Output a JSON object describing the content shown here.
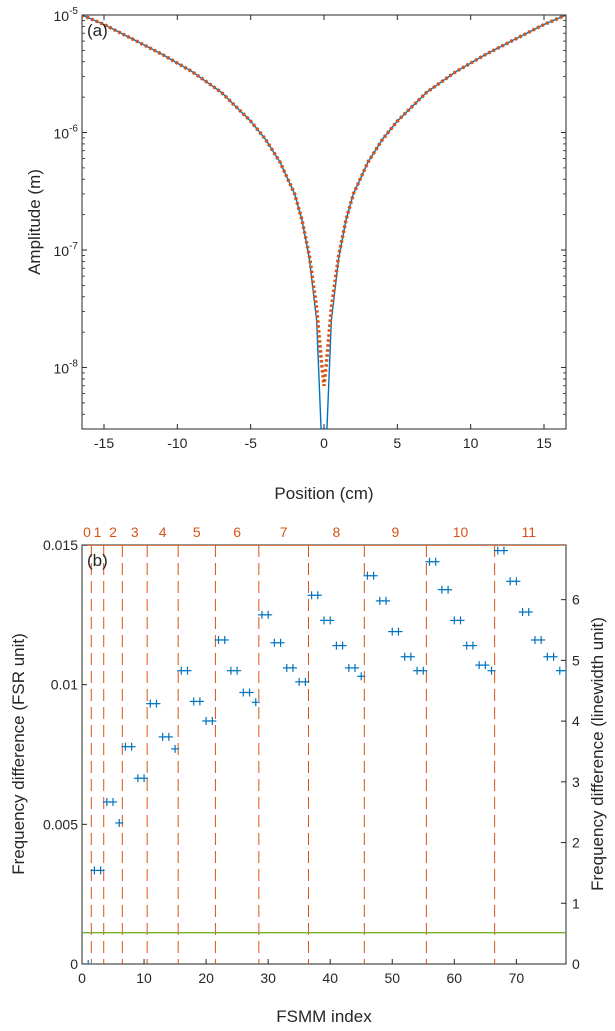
{
  "chart_data": [
    {
      "type": "line",
      "panel_label": "(a)",
      "xlabel": "Position (cm)",
      "ylabel": "Amplitude (m)",
      "xlim": [
        -16.5,
        16.5
      ],
      "ylim": [
        3e-09,
        1e-05
      ],
      "yscale": "log",
      "x_ticks": [
        -15,
        -10,
        -5,
        0,
        5,
        10,
        15
      ],
      "x_tick_labels": [
        "-15",
        "-10",
        "-5",
        "0",
        "5",
        "10",
        "15"
      ],
      "y_ticks": [
        1e-08,
        1e-07,
        1e-06,
        1e-05
      ],
      "y_tick_bases": [
        "10",
        "10",
        "10",
        "10"
      ],
      "y_tick_exponents": [
        "-8",
        "-7",
        "-6",
        "-5"
      ],
      "grid": false,
      "colors": {
        "solid": "#0072bd",
        "dotted": "#d95319"
      },
      "series": [
        {
          "style": "solid",
          "x": [
            -16.5,
            -15,
            -13,
            -11,
            -9,
            -7,
            -5,
            -4,
            -3,
            -2,
            -1.5,
            -1,
            -0.5,
            -0.2,
            0.2,
            0.5,
            1,
            1.5,
            2,
            3,
            4,
            5,
            7,
            9,
            11,
            13,
            15,
            16.5
          ],
          "y": [
            1e-05,
            8.3e-06,
            6.2e-06,
            4.6e-06,
            3.3e-06,
            2.2e-06,
            1.25e-06,
            8.8e-07,
            5.6e-07,
            3e-07,
            1.8e-07,
            8.5e-08,
            2.5e-08,
            3e-09,
            3e-09,
            2.5e-08,
            8.5e-08,
            1.8e-07,
            3e-07,
            5.6e-07,
            8.8e-07,
            1.25e-06,
            2.2e-06,
            3.3e-06,
            4.6e-06,
            6.2e-06,
            8.3e-06,
            1e-05
          ]
        },
        {
          "style": "dotted",
          "x": [
            -16.5,
            -15,
            -13,
            -11,
            -9,
            -7,
            -5,
            -4,
            -3,
            -2,
            -1.5,
            -1,
            -0.5,
            -0.2,
            0,
            0.2,
            0.5,
            1,
            1.5,
            2,
            3,
            4,
            5,
            7,
            9,
            11,
            13,
            15,
            16.5
          ],
          "y": [
            1e-05,
            8.3e-06,
            6.2e-06,
            4.6e-06,
            3.3e-06,
            2.2e-06,
            1.25e-06,
            8.8e-07,
            5.6e-07,
            3e-07,
            1.8e-07,
            9e-08,
            3.2e-08,
            1.2e-08,
            7e-09,
            1.2e-08,
            3.2e-08,
            9e-08,
            1.8e-07,
            3e-07,
            5.6e-07,
            8.8e-07,
            1.25e-06,
            2.2e-06,
            3.3e-06,
            4.6e-06,
            6.2e-06,
            8.3e-06,
            1e-05
          ]
        }
      ]
    },
    {
      "type": "scatter",
      "panel_label": "(b)",
      "xlabel": "FSMM index",
      "ylabel": "Frequency difference (FSR unit)",
      "y2label": "Frequency difference (linewidth unit)",
      "xlim": [
        0,
        78
      ],
      "ylim": [
        0,
        0.015
      ],
      "y2lim": [
        0,
        6.9
      ],
      "x_ticks": [
        0,
        10,
        20,
        30,
        40,
        50,
        60,
        70
      ],
      "x_tick_labels": [
        "0",
        "10",
        "20",
        "30",
        "40",
        "50",
        "60",
        "70"
      ],
      "y_ticks": [
        0,
        0.005,
        0.01,
        0.015
      ],
      "y_tick_labels": [
        "0",
        "0.005",
        "0.01",
        "0.015"
      ],
      "y2_ticks": [
        0,
        1,
        2,
        3,
        4,
        5,
        6
      ],
      "y2_tick_labels": [
        "0",
        "1",
        "2",
        "3",
        "4",
        "5",
        "6"
      ],
      "grid": false,
      "colors": {
        "markers": "#0072bd",
        "dividers": "#d95319",
        "threshold": "#77ac30",
        "top_labels": "#d95319"
      },
      "threshold_value": 0.00112,
      "group_boundaries": [
        1.5,
        3.5,
        6.5,
        10.5,
        15.5,
        21.5,
        28.5,
        36.5,
        45.5,
        55.5,
        66.5
      ],
      "group_labels": [
        {
          "text": "0",
          "x": 0.8
        },
        {
          "text": "1",
          "x": 2.5
        },
        {
          "text": "2",
          "x": 5
        },
        {
          "text": "3",
          "x": 8.5
        },
        {
          "text": "4",
          "x": 13
        },
        {
          "text": "5",
          "x": 18.5
        },
        {
          "text": "6",
          "x": 25
        },
        {
          "text": "7",
          "x": 32.5
        },
        {
          "text": "8",
          "x": 41
        },
        {
          "text": "9",
          "x": 50.5
        },
        {
          "text": "10",
          "x": 61
        },
        {
          "text": "11",
          "x": 72
        }
      ],
      "points": {
        "x": [
          1,
          2,
          3,
          4,
          5,
          6,
          7,
          8,
          9,
          10,
          11,
          12,
          13,
          14,
          15,
          16,
          17,
          18,
          19,
          20,
          21,
          22,
          23,
          24,
          25,
          26,
          27,
          28,
          29,
          30,
          31,
          32,
          33,
          34,
          35,
          36,
          37,
          38,
          39,
          40,
          41,
          42,
          43,
          44,
          45,
          46,
          47,
          48,
          49,
          50,
          51,
          52,
          53,
          54,
          55,
          56,
          57,
          58,
          59,
          60,
          61,
          62,
          63,
          64,
          65,
          66,
          67,
          68,
          69,
          70,
          71,
          72,
          73,
          74,
          75,
          76,
          77,
          78
        ],
        "y": [
          0,
          0.00335,
          0.00335,
          0.0058,
          0.0058,
          0.00505,
          0.00778,
          0.00778,
          0.00665,
          0.00665,
          0.00932,
          0.00932,
          0.00813,
          0.00813,
          0.0077,
          0.0105,
          0.0105,
          0.0094,
          0.0094,
          0.0087,
          0.0087,
          0.0116,
          0.0116,
          0.0105,
          0.0105,
          0.00972,
          0.00972,
          0.00937,
          0.0125,
          0.0125,
          0.0115,
          0.0115,
          0.0106,
          0.0106,
          0.0101,
          0.0101,
          0.0132,
          0.0132,
          0.0123,
          0.0123,
          0.0114,
          0.0114,
          0.0106,
          0.0106,
          0.0103,
          0.0139,
          0.0139,
          0.013,
          0.013,
          0.0119,
          0.0119,
          0.011,
          0.011,
          0.0105,
          0.0105,
          0.0144,
          0.0144,
          0.0134,
          0.0134,
          0.0123,
          0.0123,
          0.0114,
          0.0114,
          0.0107,
          0.0107,
          0.0105,
          0.0148,
          0.0148,
          0.0137,
          0.0137,
          0.0126,
          0.0126,
          0.0116,
          0.0116,
          0.011,
          0.011,
          0.0105,
          0.0105
        ]
      }
    }
  ]
}
